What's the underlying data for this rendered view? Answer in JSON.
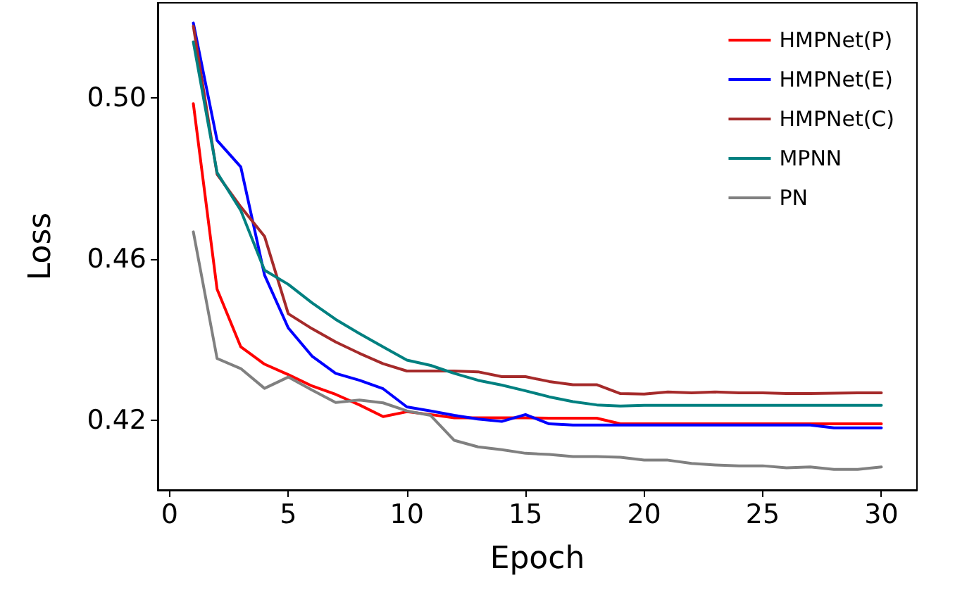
{
  "chart_data": {
    "type": "line",
    "xlabel": "Epoch",
    "ylabel": "Loss",
    "x": [
      1,
      2,
      3,
      4,
      5,
      6,
      7,
      8,
      9,
      10,
      11,
      12,
      13,
      14,
      15,
      16,
      17,
      18,
      19,
      20,
      21,
      22,
      23,
      24,
      25,
      26,
      27,
      28,
      29,
      30
    ],
    "xlim": [
      -0.5,
      31.5
    ],
    "xticks": [
      0,
      5,
      10,
      15,
      20,
      25,
      30
    ],
    "ylim": [
      0.4027,
      0.5235
    ],
    "yticks": [
      {
        "value": 0.42,
        "label": "0.42"
      },
      {
        "value": 0.46,
        "label": "0.46"
      },
      {
        "value": 0.5,
        "label": "0.50"
      }
    ],
    "grid": false,
    "legend": "top right",
    "marker": "none",
    "line_style": "solid",
    "series": [
      {
        "name": "HMPNet(P)",
        "color": "#ff0000",
        "values": [
          0.4985,
          0.4525,
          0.4382,
          0.4339,
          0.4313,
          0.4285,
          0.4264,
          0.4238,
          0.4209,
          0.4221,
          0.4214,
          0.4206,
          0.4206,
          0.4206,
          0.4206,
          0.4205,
          0.4205,
          0.4205,
          0.4191,
          0.4191,
          0.4191,
          0.4191,
          0.4191,
          0.4191,
          0.4191,
          0.4191,
          0.4191,
          0.4191,
          0.4191,
          0.4191
        ]
      },
      {
        "name": "HMPNet(E)",
        "color": "#0000ff",
        "values": [
          0.5185,
          0.4894,
          0.4828,
          0.456,
          0.4429,
          0.4359,
          0.4316,
          0.4299,
          0.4278,
          0.4233,
          0.4223,
          0.4212,
          0.4203,
          0.4197,
          0.4214,
          0.4191,
          0.4188,
          0.4188,
          0.4188,
          0.4188,
          0.4188,
          0.4188,
          0.4188,
          0.4188,
          0.4188,
          0.4188,
          0.4188,
          0.4181,
          0.4181,
          0.4181
        ]
      },
      {
        "name": "HMPNet(C)",
        "color": "#a52a2a",
        "values": [
          0.5177,
          0.481,
          0.4729,
          0.4656,
          0.4464,
          0.4427,
          0.4394,
          0.4366,
          0.434,
          0.4322,
          0.4322,
          0.4322,
          0.432,
          0.4308,
          0.4308,
          0.4296,
          0.4288,
          0.4288,
          0.4266,
          0.4265,
          0.427,
          0.4268,
          0.427,
          0.4268,
          0.4268,
          0.4266,
          0.4266,
          0.4267,
          0.4268,
          0.4268
        ]
      },
      {
        "name": "MPNN",
        "color": "#008080",
        "values": [
          0.5138,
          0.4814,
          0.472,
          0.4572,
          0.4537,
          0.4491,
          0.445,
          0.4415,
          0.4382,
          0.4349,
          0.4336,
          0.4316,
          0.4299,
          0.4287,
          0.4273,
          0.4258,
          0.4246,
          0.4238,
          0.4235,
          0.4237,
          0.4237,
          0.4237,
          0.4237,
          0.4237,
          0.4237,
          0.4237,
          0.4237,
          0.4237,
          0.4237,
          0.4237
        ]
      },
      {
        "name": "PN",
        "color": "#808080",
        "values": [
          0.4667,
          0.4353,
          0.4328,
          0.4279,
          0.4307,
          0.4275,
          0.4244,
          0.425,
          0.4243,
          0.4223,
          0.4212,
          0.415,
          0.4134,
          0.4127,
          0.4118,
          0.4115,
          0.411,
          0.411,
          0.4108,
          0.4101,
          0.4101,
          0.4093,
          0.4089,
          0.4087,
          0.4087,
          0.4082,
          0.4084,
          0.4078,
          0.4078,
          0.4084
        ]
      }
    ]
  }
}
